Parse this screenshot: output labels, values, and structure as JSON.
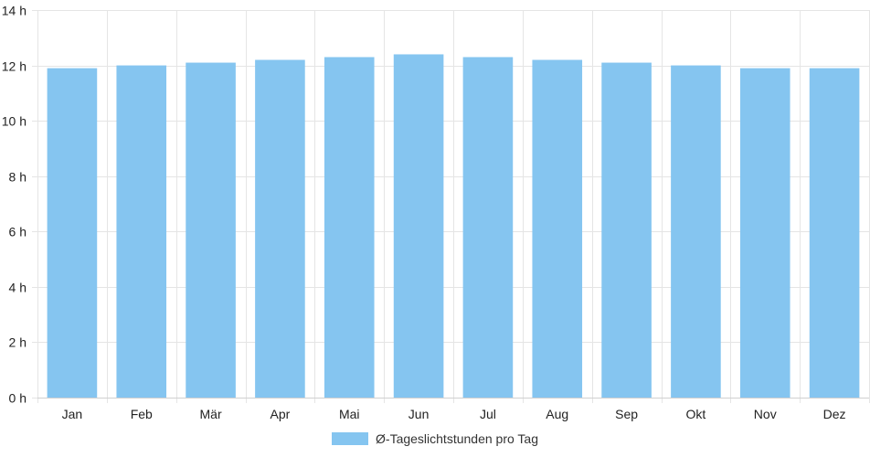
{
  "chart_data": {
    "type": "bar",
    "categories": [
      "Jan",
      "Feb",
      "Mär",
      "Apr",
      "Mai",
      "Jun",
      "Jul",
      "Aug",
      "Sep",
      "Okt",
      "Nov",
      "Dez"
    ],
    "series": [
      {
        "name": "Ø-Tageslichtstunden pro Tag",
        "values": [
          11.9,
          12.0,
          12.1,
          12.2,
          12.3,
          12.4,
          12.3,
          12.2,
          12.1,
          12.0,
          11.9,
          11.9
        ],
        "color": "#85c5f0"
      }
    ],
    "yticks": [
      "0 h",
      "2 h",
      "4 h",
      "6 h",
      "8 h",
      "10 h",
      "12 h",
      "14 h"
    ],
    "ylim": [
      0,
      14
    ],
    "grid": true,
    "legend_position": "bottom"
  }
}
